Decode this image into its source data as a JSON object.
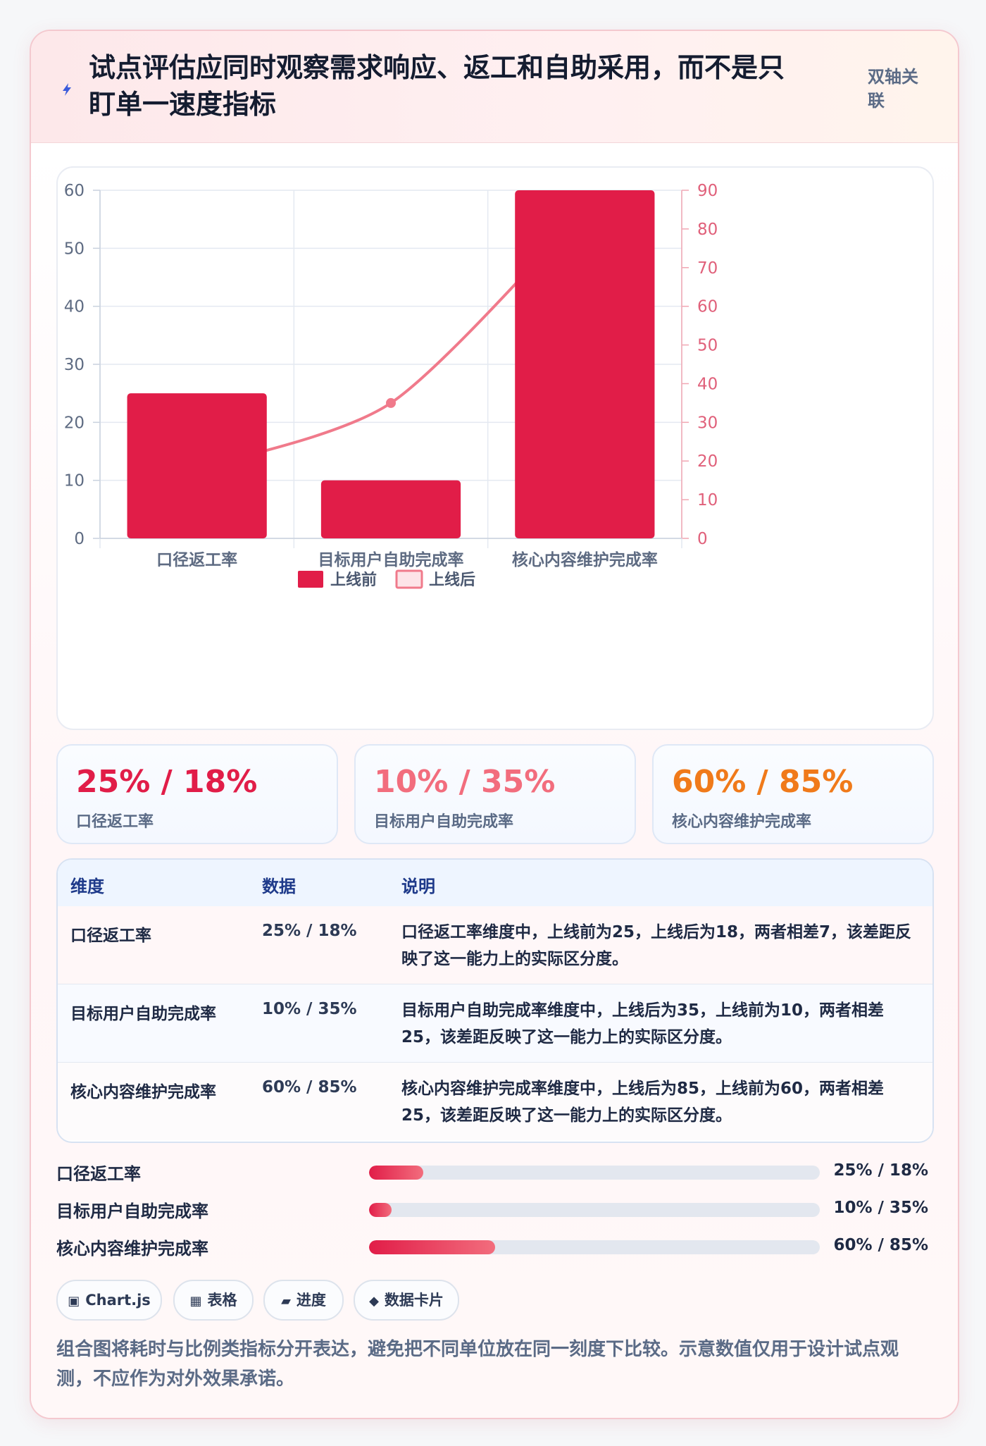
{
  "header": {
    "title": "试点评估应同时观察需求响应、返工和自助采用，而不是只盯单一速度指标",
    "tag": "双轴关联",
    "icon": "lightning-icon"
  },
  "chart_data": {
    "type": "bar-line-combo",
    "categories": [
      "口径返工率",
      "目标用户自助完成率",
      "核心内容维护完成率"
    ],
    "series": [
      {
        "name": "上线前",
        "type": "bar",
        "axis": "left",
        "values": [
          25,
          10,
          60
        ],
        "color": "#e11d48"
      },
      {
        "name": "上线后",
        "type": "line",
        "axis": "right",
        "values": [
          18,
          35,
          85
        ],
        "color": "#f07a8b"
      }
    ],
    "y_left": {
      "min": 0,
      "max": 60,
      "ticks": [
        0,
        10,
        20,
        30,
        40,
        50,
        60
      ]
    },
    "y_right": {
      "min": 0,
      "max": 90,
      "ticks": [
        0,
        10,
        20,
        30,
        40,
        50,
        60,
        70,
        80,
        90
      ]
    },
    "legend_position": "bottom",
    "grid": true
  },
  "stats": [
    {
      "value": "25% / 18%",
      "label": "口径返工率",
      "color": "#e11d48"
    },
    {
      "value": "10% / 35%",
      "label": "目标用户自助完成率",
      "color": "#f26d7d"
    },
    {
      "value": "60% / 85%",
      "label": "核心内容维护完成率",
      "color": "#f07a1a"
    }
  ],
  "table": {
    "headers": [
      "维度",
      "数据",
      "说明"
    ],
    "rows": [
      {
        "dim": "口径返工率",
        "data": "25% / 18%",
        "desc": "口径返工率维度中，上线前为25，上线后为18，两者相差7，该差距反映了这一能力上的实际区分度。"
      },
      {
        "dim": "目标用户自助完成率",
        "data": "10% / 35%",
        "desc": "目标用户自助完成率维度中，上线后为35，上线前为10，两者相差25，该差距反映了这一能力上的实际区分度。"
      },
      {
        "dim": "核心内容维护完成率",
        "data": "60% / 85%",
        "desc": "核心内容维护完成率维度中，上线后为85，上线前为60，两者相差25，该差距反映了这一能力上的实际区分度。"
      }
    ]
  },
  "progress": [
    {
      "label": "口径返工率",
      "value": "25% / 18%",
      "fill": 0.12
    },
    {
      "label": "目标用户自助完成率",
      "value": "10% / 35%",
      "fill": 0.05
    },
    {
      "label": "核心内容维护完成率",
      "value": "60% / 85%",
      "fill": 0.28
    }
  ],
  "chips": [
    {
      "icon": "▣",
      "label": "Chart.js",
      "icon_name": "chart-icon"
    },
    {
      "icon": "▦",
      "label": "表格",
      "icon_name": "table-icon"
    },
    {
      "icon": "▰",
      "label": "进度",
      "icon_name": "progress-icon"
    },
    {
      "icon": "◆",
      "label": "数据卡片",
      "icon_name": "card-icon"
    }
  ],
  "note": "组合图将耗时与比例类指标分开表达，避免把不同单位放在同一刻度下比较。示意数值仅用于设计试点观测，不应作为对外效果承诺。"
}
